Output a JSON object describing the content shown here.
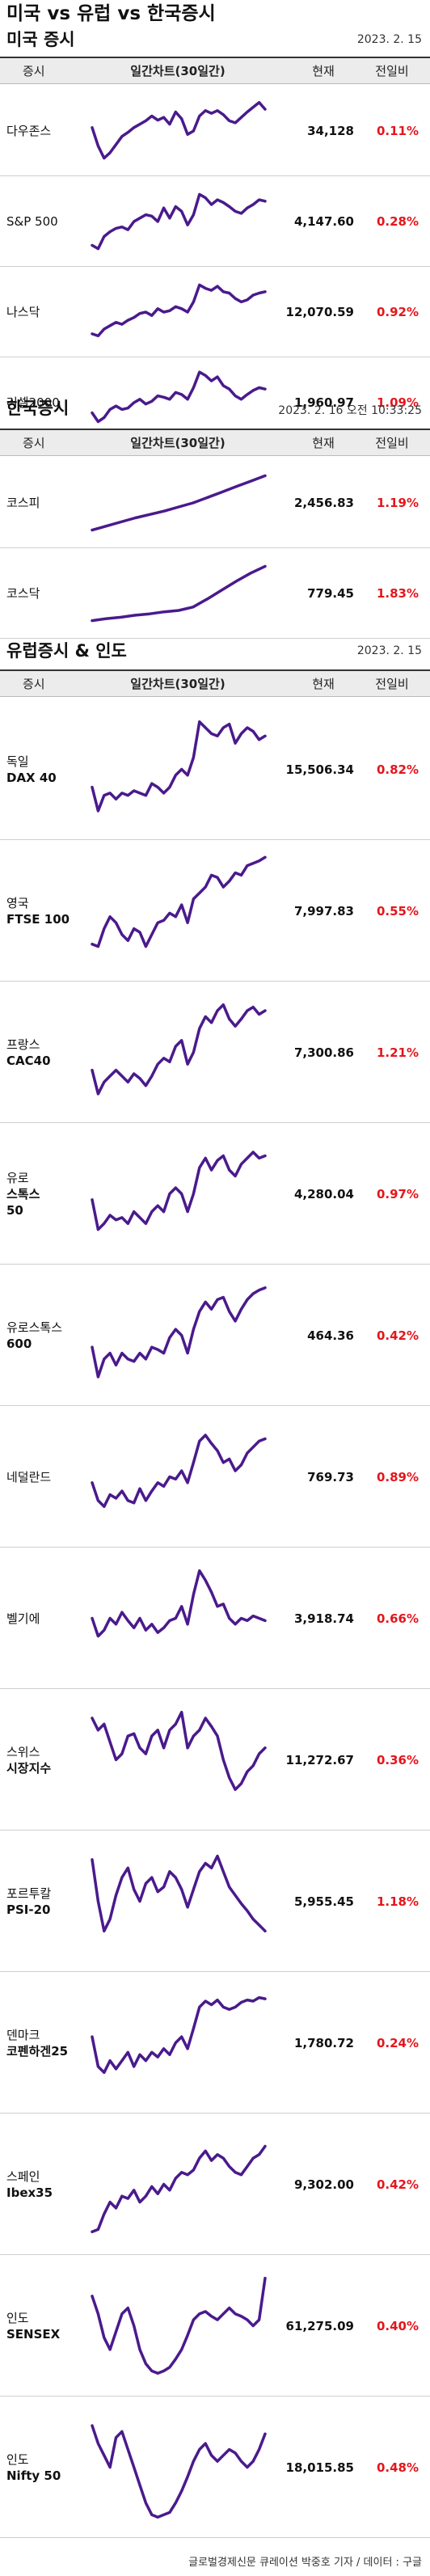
{
  "page_title": "미국 vs 유럽 vs 한국증시",
  "colors": {
    "line": "#4a1a8c",
    "up": "#e4161c",
    "header_bg": "#ececec"
  },
  "headers": {
    "index": "증시",
    "chart": "일간차트(30일간)",
    "current": "현재",
    "change": "전일비"
  },
  "sections": [
    {
      "title": "미국 증시",
      "date": "2023. 2. 15",
      "rows": [
        {
          "name": [
            "다우존스"
          ],
          "value": "34,128",
          "change": "0.11%",
          "trend": [
            0.55,
            0.28,
            0.1,
            0.18,
            0.3,
            0.42,
            0.48,
            0.55,
            0.6,
            0.65,
            0.72,
            0.66,
            0.7,
            0.6,
            0.78,
            0.68,
            0.45,
            0.5,
            0.72,
            0.8,
            0.76,
            0.8,
            0.74,
            0.65,
            0.62,
            0.7,
            0.78,
            0.85,
            0.92,
            0.82
          ]
        },
        {
          "name": [
            "S&P 500"
          ],
          "value": "4,147.60",
          "change": "0.28%",
          "trend": [
            0.15,
            0.1,
            0.28,
            0.35,
            0.4,
            0.42,
            0.38,
            0.5,
            0.55,
            0.6,
            0.58,
            0.5,
            0.7,
            0.55,
            0.72,
            0.65,
            0.45,
            0.6,
            0.9,
            0.85,
            0.75,
            0.82,
            0.78,
            0.72,
            0.65,
            0.62,
            0.7,
            0.75,
            0.82,
            0.8
          ]
        },
        {
          "name": [
            "나스닥"
          ],
          "value": "12,070.59",
          "change": "0.92%",
          "trend": [
            0.18,
            0.15,
            0.25,
            0.3,
            0.35,
            0.32,
            0.38,
            0.42,
            0.48,
            0.5,
            0.45,
            0.55,
            0.5,
            0.52,
            0.58,
            0.55,
            0.5,
            0.65,
            0.9,
            0.85,
            0.82,
            0.88,
            0.8,
            0.78,
            0.7,
            0.65,
            0.68,
            0.75,
            0.78,
            0.8
          ]
        },
        {
          "name": [
            "러셀2000"
          ],
          "value": "1,960.97",
          "change": "1.09%",
          "trend": [
            0.35,
            0.22,
            0.28,
            0.4,
            0.45,
            0.4,
            0.42,
            0.5,
            0.55,
            0.48,
            0.52,
            0.6,
            0.58,
            0.55,
            0.65,
            0.62,
            0.55,
            0.72,
            0.95,
            0.9,
            0.82,
            0.88,
            0.75,
            0.7,
            0.6,
            0.55,
            0.62,
            0.68,
            0.72,
            0.7
          ]
        }
      ]
    },
    {
      "title": "한국증시",
      "date": "2023. 2. 16 오전 10:33:25",
      "rows": [
        {
          "name": [
            "코스피"
          ],
          "value": "2,456.83",
          "change": "1.19%",
          "trend": [
            0.1,
            0.16,
            0.22,
            0.28,
            0.33,
            0.38,
            0.44,
            0.5,
            0.58,
            0.66,
            0.74,
            0.82,
            0.9
          ]
        },
        {
          "name": [
            "코스닥"
          ],
          "value": "779.45",
          "change": "1.83%",
          "trend": [
            0.1,
            0.13,
            0.15,
            0.18,
            0.2,
            0.23,
            0.25,
            0.3,
            0.42,
            0.55,
            0.68,
            0.8,
            0.9
          ]
        }
      ]
    },
    {
      "title": "유럽증시 & 인도",
      "date": "2023. 2. 15",
      "rows": [
        {
          "name": [
            "독일",
            "DAX 40"
          ],
          "value": "15,506.34",
          "change": "0.82%",
          "trend": [
            0.35,
            0.15,
            0.28,
            0.3,
            0.25,
            0.3,
            0.28,
            0.32,
            0.3,
            0.28,
            0.38,
            0.35,
            0.3,
            0.35,
            0.45,
            0.5,
            0.45,
            0.6,
            0.9,
            0.85,
            0.8,
            0.78,
            0.85,
            0.88,
            0.72,
            0.8,
            0.85,
            0.82,
            0.75,
            0.78
          ]
        },
        {
          "name": [
            "영국",
            "FTSE 100"
          ],
          "value": "7,997.83",
          "change": "0.55%",
          "trend": [
            0.22,
            0.2,
            0.35,
            0.45,
            0.4,
            0.3,
            0.25,
            0.35,
            0.32,
            0.2,
            0.3,
            0.4,
            0.42,
            0.48,
            0.45,
            0.55,
            0.4,
            0.6,
            0.65,
            0.7,
            0.8,
            0.78,
            0.7,
            0.75,
            0.82,
            0.8,
            0.88,
            0.9,
            0.92,
            0.95
          ]
        },
        {
          "name": [
            "프랑스",
            "CAC40"
          ],
          "value": "7,300.86",
          "change": "1.21%",
          "trend": [
            0.35,
            0.15,
            0.25,
            0.3,
            0.35,
            0.3,
            0.25,
            0.32,
            0.28,
            0.22,
            0.3,
            0.4,
            0.45,
            0.42,
            0.55,
            0.6,
            0.4,
            0.5,
            0.7,
            0.8,
            0.75,
            0.85,
            0.9,
            0.78,
            0.72,
            0.78,
            0.85,
            0.88,
            0.82,
            0.85
          ]
        },
        {
          "name": [
            "유로",
            "스톡스",
            "50"
          ],
          "value": "4,280.04",
          "change": "0.97%",
          "trend": [
            0.45,
            0.2,
            0.25,
            0.32,
            0.28,
            0.3,
            0.25,
            0.35,
            0.3,
            0.25,
            0.35,
            0.4,
            0.35,
            0.5,
            0.55,
            0.5,
            0.35,
            0.5,
            0.72,
            0.8,
            0.7,
            0.78,
            0.82,
            0.7,
            0.65,
            0.75,
            0.8,
            0.85,
            0.8,
            0.82
          ]
        },
        {
          "name": [
            "유로스톡스",
            "600"
          ],
          "value": "464.36",
          "change": "0.42%",
          "trend": [
            0.4,
            0.15,
            0.3,
            0.35,
            0.25,
            0.35,
            0.3,
            0.28,
            0.35,
            0.3,
            0.4,
            0.38,
            0.35,
            0.48,
            0.55,
            0.5,
            0.35,
            0.55,
            0.7,
            0.78,
            0.72,
            0.8,
            0.82,
            0.7,
            0.62,
            0.72,
            0.8,
            0.85,
            0.88,
            0.9
          ]
        },
        {
          "name": [
            "네덜란드"
          ],
          "value": "769.73",
          "change": "0.89%",
          "trend": [
            0.45,
            0.3,
            0.25,
            0.35,
            0.32,
            0.38,
            0.3,
            0.28,
            0.4,
            0.3,
            0.38,
            0.45,
            0.42,
            0.5,
            0.48,
            0.55,
            0.45,
            0.62,
            0.8,
            0.85,
            0.78,
            0.72,
            0.62,
            0.65,
            0.55,
            0.6,
            0.7,
            0.75,
            0.8,
            0.82
          ]
        },
        {
          "name": [
            "벨기에"
          ],
          "value": "3,918.74",
          "change": "0.66%",
          "trend": [
            0.5,
            0.35,
            0.4,
            0.5,
            0.45,
            0.55,
            0.48,
            0.42,
            0.5,
            0.4,
            0.45,
            0.38,
            0.42,
            0.48,
            0.5,
            0.6,
            0.45,
            0.7,
            0.9,
            0.82,
            0.72,
            0.6,
            0.62,
            0.5,
            0.45,
            0.5,
            0.48,
            0.52,
            0.5,
            0.48
          ]
        },
        {
          "name": [
            "스위스",
            "시장지수"
          ],
          "value": "11,272.67",
          "change": "0.36%",
          "trend": [
            0.85,
            0.75,
            0.8,
            0.65,
            0.5,
            0.55,
            0.7,
            0.72,
            0.6,
            0.55,
            0.7,
            0.75,
            0.6,
            0.75,
            0.8,
            0.9,
            0.6,
            0.7,
            0.75,
            0.85,
            0.78,
            0.7,
            0.5,
            0.35,
            0.25,
            0.3,
            0.4,
            0.45,
            0.55,
            0.6
          ]
        },
        {
          "name": [
            "포르투칼",
            "PSI-20"
          ],
          "value": "5,955.45",
          "change": "1.18%",
          "trend": [
            0.85,
            0.5,
            0.25,
            0.35,
            0.55,
            0.7,
            0.78,
            0.6,
            0.5,
            0.65,
            0.7,
            0.58,
            0.62,
            0.75,
            0.7,
            0.6,
            0.45,
            0.6,
            0.75,
            0.82,
            0.78,
            0.88,
            0.75,
            0.62,
            0.55,
            0.48,
            0.42,
            0.35,
            0.3,
            0.25
          ]
        },
        {
          "name": [
            "덴마크",
            "코펜하겐25"
          ],
          "value": "1,780.72",
          "change": "0.24%",
          "trend": [
            0.55,
            0.3,
            0.25,
            0.35,
            0.28,
            0.35,
            0.42,
            0.3,
            0.4,
            0.35,
            0.42,
            0.38,
            0.45,
            0.4,
            0.5,
            0.55,
            0.45,
            0.62,
            0.8,
            0.85,
            0.82,
            0.86,
            0.8,
            0.78,
            0.8,
            0.84,
            0.86,
            0.85,
            0.88,
            0.87
          ]
        },
        {
          "name": [
            "스페인",
            "Ibex35"
          ],
          "value": "9,302.00",
          "change": "0.42%",
          "trend": [
            0.1,
            0.12,
            0.25,
            0.35,
            0.3,
            0.4,
            0.38,
            0.45,
            0.35,
            0.4,
            0.48,
            0.42,
            0.5,
            0.45,
            0.55,
            0.6,
            0.58,
            0.62,
            0.72,
            0.78,
            0.7,
            0.75,
            0.72,
            0.65,
            0.6,
            0.58,
            0.65,
            0.72,
            0.75,
            0.82
          ]
        },
        {
          "name": [
            "인도",
            "SENSEX"
          ],
          "value": "61,275.09",
          "change": "0.40%",
          "trend": [
            0.75,
            0.6,
            0.4,
            0.3,
            0.45,
            0.6,
            0.65,
            0.5,
            0.3,
            0.18,
            0.12,
            0.1,
            0.12,
            0.15,
            0.22,
            0.3,
            0.42,
            0.55,
            0.6,
            0.62,
            0.58,
            0.55,
            0.6,
            0.65,
            0.6,
            0.58,
            0.55,
            0.5,
            0.55,
            0.9
          ]
        },
        {
          "name": [
            "인도",
            "Nifty 50"
          ],
          "value": "18,015.85",
          "change": "0.48%",
          "trend": [
            0.85,
            0.7,
            0.6,
            0.5,
            0.75,
            0.8,
            0.65,
            0.5,
            0.35,
            0.2,
            0.1,
            0.08,
            0.1,
            0.12,
            0.2,
            0.3,
            0.42,
            0.55,
            0.65,
            0.7,
            0.6,
            0.55,
            0.6,
            0.65,
            0.62,
            0.55,
            0.5,
            0.55,
            0.65,
            0.78
          ]
        }
      ]
    }
  ],
  "footer": "글로벌경제신문 큐레이션 박중호 기자 / 데이터 : 구글"
}
